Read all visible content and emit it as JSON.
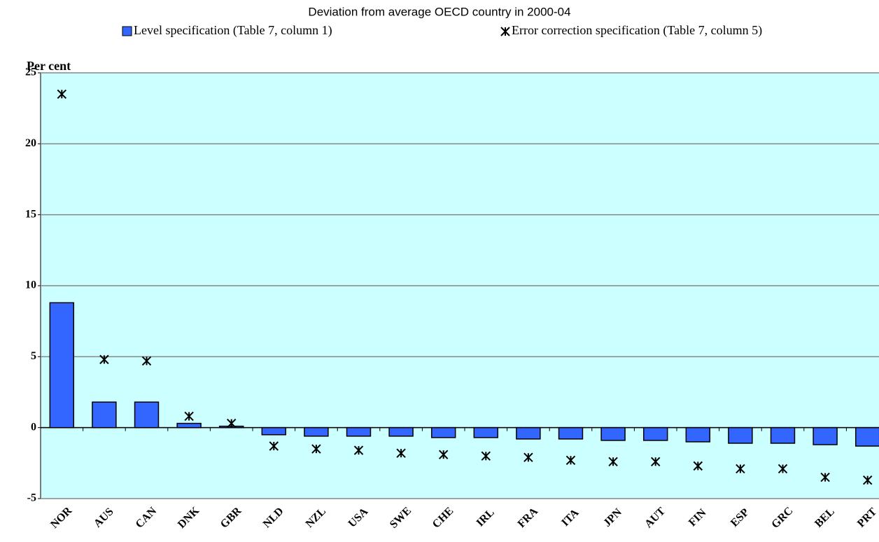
{
  "chart_data": {
    "type": "bar",
    "title": "Deviation from average OECD country in 2000-04",
    "y_label": "Per cent",
    "categories": [
      "NOR",
      "AUS",
      "CAN",
      "DNK",
      "GBR",
      "NLD",
      "NZL",
      "USA",
      "SWE",
      "CHE",
      "IRL",
      "FRA",
      "ITA",
      "JPN",
      "AUT",
      "FIN",
      "ESP",
      "GRC",
      "BEL",
      "PRT"
    ],
    "series": [
      {
        "name": "Level specification (Table 7, column 1)",
        "type": "bar",
        "color": "#3366ff",
        "values": [
          8.8,
          1.8,
          1.8,
          0.3,
          0.1,
          -0.5,
          -0.6,
          -0.6,
          -0.6,
          -0.7,
          -0.7,
          -0.8,
          -0.8,
          -0.9,
          -0.9,
          -1.0,
          -1.1,
          -1.1,
          -1.2,
          -1.3
        ]
      },
      {
        "name": "Error correction specification (Table 7, column 5)",
        "type": "marker",
        "color": "#000000",
        "values": [
          23.5,
          4.8,
          4.7,
          0.8,
          0.3,
          -1.3,
          -1.5,
          -1.6,
          -1.8,
          -1.9,
          -2.0,
          -2.1,
          -2.3,
          -2.4,
          -2.4,
          -2.7,
          -2.9,
          -2.9,
          -3.5,
          -3.7
        ]
      }
    ],
    "ylim": [
      -5,
      25
    ],
    "yticks": [
      -5,
      0,
      5,
      10,
      15,
      20,
      25
    ],
    "grid": true,
    "background": "#ccffff"
  }
}
